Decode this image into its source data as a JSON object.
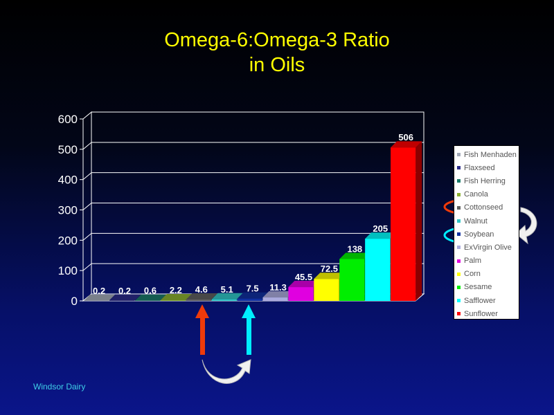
{
  "chart_data": {
    "type": "bar",
    "title": "Omega-6:Omega-3  Ratio\nin  Oils",
    "categories": [
      "Fish Menhaden",
      "Flaxseed",
      "Fish Herring",
      "Canola",
      "Cottonseed",
      "Walnut",
      "Soybean",
      "ExVirgin Olive",
      "Palm",
      "Corn",
      "Sesame",
      "Safflower",
      "Sunflower"
    ],
    "values": [
      0.2,
      0.2,
      0.6,
      2.2,
      4.6,
      5.1,
      7.5,
      11.3,
      45.5,
      72.5,
      138,
      205,
      506
    ],
    "value_labels": [
      "0.2",
      "0.2",
      "0.6",
      "2.2",
      "4.6",
      "5.1",
      "7.5",
      "11.3",
      "45.5",
      "72.5",
      "138",
      "205",
      "506"
    ],
    "colors": [
      "#a3aab8",
      "#2b2b8a",
      "#1a7a6a",
      "#8ab030",
      "#606060",
      "#30c8c8",
      "#1030a0",
      "#aaaadd",
      "#e000e0",
      "#ffff00",
      "#00ee00",
      "#00ffff",
      "#ff0000"
    ],
    "ylim": [
      0,
      600
    ],
    "yticks": [
      0,
      100,
      200,
      300,
      400,
      500,
      600
    ],
    "grid": true,
    "legend": "right",
    "highlighted": [
      "Cottonseed",
      "Soybean"
    ]
  },
  "footer": "Windsor  Dairy"
}
